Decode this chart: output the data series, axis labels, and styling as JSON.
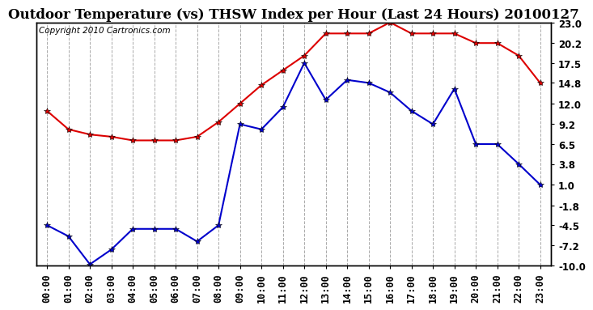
{
  "title": "Outdoor Temperature (vs) THSW Index per Hour (Last 24 Hours) 20100127",
  "copyright": "Copyright 2010 Cartronics.com",
  "hours": [
    "00:00",
    "01:00",
    "02:00",
    "03:00",
    "04:00",
    "05:00",
    "06:00",
    "07:00",
    "08:00",
    "09:00",
    "10:00",
    "11:00",
    "12:00",
    "13:00",
    "14:00",
    "15:00",
    "16:00",
    "17:00",
    "18:00",
    "19:00",
    "20:00",
    "21:00",
    "22:00",
    "23:00"
  ],
  "temp_red": [
    11.0,
    8.5,
    7.8,
    7.5,
    7.0,
    7.0,
    7.0,
    7.5,
    9.5,
    12.0,
    14.5,
    16.5,
    18.5,
    21.5,
    21.5,
    21.5,
    23.0,
    21.5,
    21.5,
    21.5,
    20.2,
    20.2,
    18.5,
    14.8
  ],
  "thsw_blue": [
    -4.5,
    -6.0,
    -9.8,
    -7.8,
    -5.0,
    -5.0,
    -5.0,
    -6.7,
    -4.5,
    9.2,
    8.5,
    11.5,
    17.5,
    12.5,
    15.2,
    14.8,
    13.5,
    11.0,
    9.2,
    14.0,
    6.5,
    6.5,
    3.8,
    1.0
  ],
  "yticks": [
    23.0,
    20.2,
    17.5,
    14.8,
    12.0,
    9.2,
    6.5,
    3.8,
    1.0,
    -1.8,
    -4.5,
    -7.2,
    -10.0
  ],
  "ymin": -10.0,
  "ymax": 23.0,
  "red_color": "#dd0000",
  "blue_color": "#0000cc",
  "grid_color": "#aaaaaa",
  "bg_color": "#ffffff",
  "title_fontsize": 12,
  "tick_fontsize": 8.5,
  "copyright_fontsize": 7.5
}
